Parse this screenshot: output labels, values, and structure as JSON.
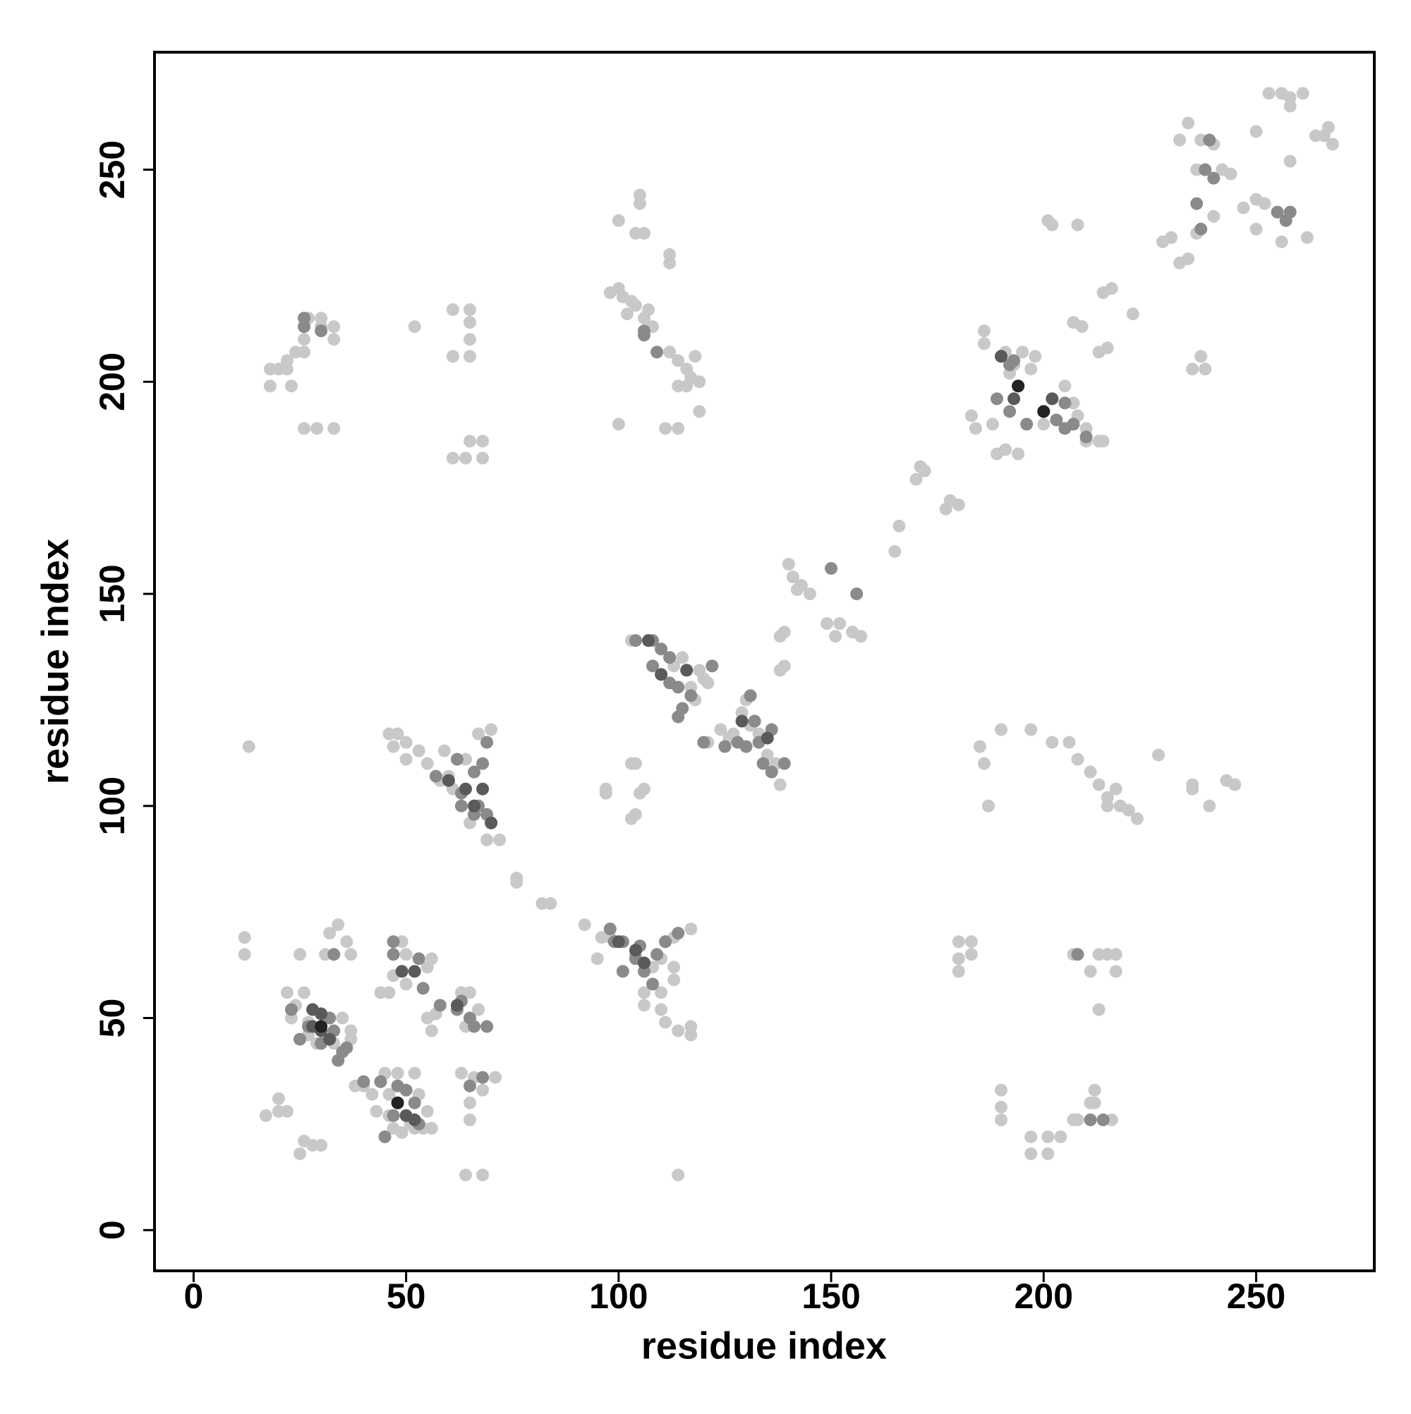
{
  "chart_data": {
    "type": "scatter",
    "xlabel": "residue index",
    "ylabel": "residue index",
    "xlim": [
      -9.2,
      277.8
    ],
    "ylim": [
      -9.6,
      277.7
    ],
    "xticks": [
      0,
      50,
      100,
      150,
      200,
      250
    ],
    "yticks": [
      0,
      50,
      100,
      150,
      200,
      250
    ],
    "series": [
      {
        "color": "#c8c8c8",
        "x": [
          253,
          256,
          258,
          261,
          258,
          266,
          268,
          267,
          264,
          234,
          232,
          237,
          240,
          236,
          242,
          244,
          250,
          252,
          247,
          240,
          236,
          230,
          228,
          234,
          232,
          250,
          258,
          262,
          256,
          250,
          237,
          238,
          235,
          202,
          208,
          201,
          216,
          214,
          221,
          215,
          213,
          209,
          207,
          195,
          198,
          191,
          186,
          186,
          192,
          197,
          193,
          183,
          184,
          188,
          191,
          189,
          194,
          200,
          205,
          207,
          208,
          210,
          210,
          213,
          214,
          172,
          171,
          170,
          177,
          178,
          180,
          165,
          166,
          141,
          142,
          143,
          145,
          140,
          138,
          139,
          138,
          139,
          151,
          152,
          155,
          157,
          149,
          130,
          129,
          131,
          133,
          127,
          126,
          121,
          124,
          135,
          137,
          138,
          118,
          120,
          116,
          121,
          115,
          113,
          103,
          119,
          117,
          104,
          103,
          106,
          105,
          103,
          104,
          97,
          97,
          185,
          186,
          187,
          190,
          197,
          202,
          206,
          208,
          211,
          213,
          215,
          217,
          220,
          222,
          218,
          215,
          227,
          235,
          235,
          239,
          243,
          245,
          46,
          48,
          50,
          47,
          50,
          53,
          55,
          58,
          60,
          59,
          64,
          61,
          65,
          70,
          67,
          69,
          72,
          13,
          76,
          76,
          82,
          84,
          92,
          96,
          98,
          95,
          104,
          108,
          111,
          113,
          117,
          110,
          113,
          113,
          106,
          106,
          110,
          110,
          111,
          114,
          117,
          117,
          114,
          12,
          12,
          25,
          31,
          32,
          34,
          37,
          36,
          22,
          24,
          26,
          23,
          27,
          29,
          33,
          35,
          37,
          37,
          27,
          38,
          40,
          42,
          43,
          46,
          47,
          49,
          51,
          52,
          54,
          56,
          55,
          53,
          52,
          48,
          45,
          46,
          44,
          46,
          47,
          50,
          49,
          50,
          49,
          56,
          55,
          55,
          56,
          57,
          63,
          65,
          67,
          64,
          63,
          66,
          68,
          71,
          65,
          65,
          17,
          20,
          20,
          22,
          25,
          26,
          28,
          30,
          64,
          68,
          18,
          18,
          20,
          23,
          22,
          22,
          24,
          26,
          26,
          27,
          30,
          30,
          33,
          33,
          26,
          29,
          33,
          52,
          61,
          65,
          65,
          65,
          61,
          65,
          61,
          64,
          65,
          68,
          68,
          98,
          100,
          101,
          103,
          102,
          104,
          107,
          106,
          108,
          100,
          105,
          105,
          104,
          106,
          112,
          112,
          112,
          114,
          116,
          118,
          117,
          119,
          116,
          114,
          111,
          114,
          119,
          100,
          180,
          180,
          180,
          183,
          183,
          190,
          190,
          190,
          197,
          197,
          201,
          201,
          204,
          207,
          208,
          211,
          212,
          213,
          213,
          215,
          217,
          217,
          211,
          207,
          212,
          216
        ],
        "y": [
          268,
          268,
          267,
          268,
          265,
          258,
          256,
          260,
          258,
          261,
          257,
          257,
          256,
          250,
          250,
          249,
          243,
          242,
          241,
          239,
          235,
          234,
          233,
          229,
          228,
          259,
          252,
          234,
          233,
          236,
          206,
          203,
          203,
          237,
          237,
          238,
          222,
          221,
          216,
          208,
          207,
          213,
          214,
          207,
          206,
          207,
          212,
          209,
          202,
          203,
          204,
          192,
          189,
          190,
          184,
          183,
          183,
          190,
          199,
          195,
          192,
          189,
          186,
          186,
          186,
          179,
          180,
          177,
          170,
          172,
          171,
          160,
          166,
          154,
          151,
          152,
          150,
          157,
          140,
          141,
          132,
          133,
          140,
          143,
          141,
          140,
          143,
          125,
          122,
          119,
          117,
          117,
          116,
          115,
          118,
          112,
          110,
          105,
          125,
          130,
          132,
          129,
          135,
          133,
          139,
          132,
          128,
          110,
          110,
          104,
          103,
          97,
          98,
          103,
          104,
          114,
          110,
          100,
          118,
          118,
          115,
          115,
          111,
          108,
          105,
          102,
          104,
          99,
          97,
          100,
          100,
          112,
          105,
          104,
          100,
          106,
          105,
          117,
          117,
          115,
          114,
          111,
          113,
          110,
          106,
          107,
          113,
          111,
          104,
          96,
          118,
          117,
          92,
          92,
          114,
          83,
          82,
          77,
          77,
          72,
          69,
          69,
          64,
          65,
          62,
          68,
          69,
          71,
          64,
          62,
          59,
          56,
          53,
          56,
          52,
          49,
          47,
          48,
          46,
          13,
          69,
          65,
          65,
          65,
          70,
          72,
          65,
          68,
          56,
          53,
          56,
          50,
          46,
          44,
          44,
          50,
          47,
          45,
          49,
          34,
          34,
          32,
          28,
          27,
          24,
          23,
          25,
          24,
          24,
          24,
          28,
          32,
          37,
          37,
          37,
          32,
          56,
          56,
          60,
          58,
          68,
          65,
          61,
          64,
          62,
          50,
          47,
          51,
          56,
          56,
          52,
          48,
          37,
          36,
          33,
          36,
          30,
          26,
          27,
          28,
          31,
          28,
          18,
          21,
          20,
          20,
          13,
          13,
          203,
          199,
          203,
          199,
          203,
          205,
          207,
          207,
          210,
          215,
          213,
          215,
          213,
          210,
          189,
          189,
          189,
          213,
          217,
          217,
          214,
          210,
          206,
          206,
          182,
          182,
          186,
          186,
          182,
          221,
          222,
          220,
          219,
          216,
          218,
          217,
          215,
          213,
          238,
          244,
          242,
          235,
          235,
          230,
          228,
          207,
          205,
          203,
          206,
          201,
          200,
          199,
          199,
          189,
          189,
          193,
          190,
          68,
          64,
          61,
          68,
          65,
          33,
          29,
          26,
          22,
          18,
          22,
          18,
          22,
          26,
          26,
          30,
          33,
          52,
          65,
          65,
          65,
          61,
          61,
          65,
          30,
          26
        ]
      },
      {
        "color": "#8a8a8a",
        "x": [
          26,
          26,
          30,
          106,
          109,
          106,
          190,
          192,
          189,
          196,
          192,
          193,
          205,
          203,
          207,
          205,
          210,
          239,
          238,
          240,
          236,
          237,
          255,
          258,
          257,
          150,
          156,
          104,
          108,
          110,
          112,
          108,
          112,
          114,
          115,
          117,
          114,
          122,
          120,
          125,
          128,
          130,
          132,
          131,
          133,
          136,
          136,
          139,
          134,
          57,
          62,
          63,
          66,
          68,
          67,
          63,
          66,
          70,
          69,
          69,
          98,
          99,
          101,
          104,
          105,
          108,
          109,
          111,
          114,
          101,
          106,
          25,
          23,
          27,
          30,
          32,
          33,
          35,
          36,
          34,
          33,
          40,
          44,
          45,
          47,
          50,
          52,
          53,
          48,
          47,
          47,
          53,
          54,
          58,
          62,
          65,
          66,
          69,
          65,
          68,
          63,
          208,
          211,
          214
        ],
        "y": [
          213,
          215,
          212,
          211,
          207,
          212,
          206,
          204,
          196,
          190,
          193,
          205,
          195,
          191,
          190,
          189,
          187,
          257,
          250,
          248,
          242,
          236,
          240,
          240,
          238,
          156,
          150,
          139,
          139,
          137,
          135,
          133,
          129,
          128,
          123,
          126,
          121,
          133,
          115,
          114,
          115,
          114,
          120,
          126,
          115,
          118,
          108,
          110,
          110,
          107,
          111,
          103,
          108,
          110,
          100,
          100,
          98,
          96,
          98,
          115,
          71,
          68,
          68,
          64,
          67,
          58,
          65,
          68,
          70,
          61,
          61,
          45,
          52,
          48,
          44,
          50,
          47,
          42,
          43,
          40,
          65,
          35,
          35,
          22,
          27,
          33,
          30,
          25,
          34,
          68,
          65,
          64,
          57,
          53,
          52,
          50,
          48,
          48,
          34,
          36,
          54,
          65,
          26,
          26
        ]
      },
      {
        "color": "#5a5a5a",
        "x": [
          28,
          30,
          30,
          32,
          28,
          48,
          50,
          52,
          49,
          52,
          62,
          60,
          64,
          68,
          70,
          66,
          104,
          100,
          106,
          194,
          193,
          200,
          202,
          190,
          135,
          129,
          110,
          116,
          107
        ],
        "y": [
          48,
          51,
          47,
          45,
          52,
          30,
          27,
          26,
          61,
          61,
          53,
          106,
          104,
          104,
          96,
          100,
          66,
          68,
          63,
          199,
          196,
          193,
          196,
          206,
          116,
          120,
          131,
          132,
          139
        ]
      },
      {
        "color": "#222222",
        "x": [
          30,
          48,
          194,
          200
        ],
        "y": [
          48,
          30,
          199,
          193
        ]
      }
    ]
  }
}
